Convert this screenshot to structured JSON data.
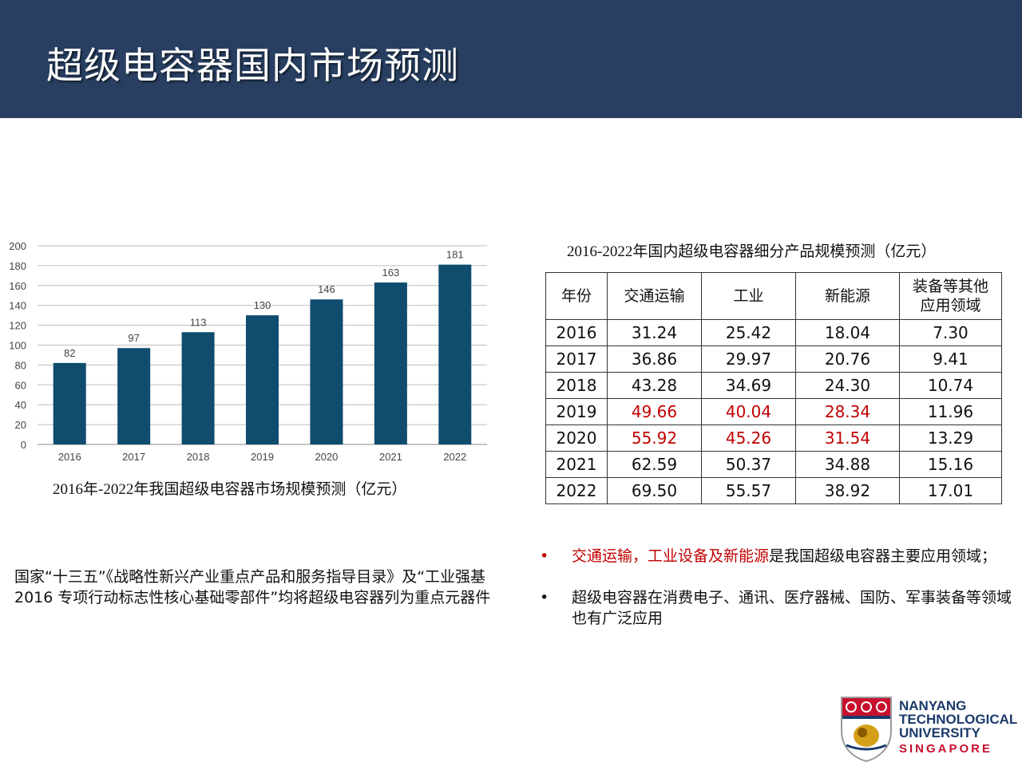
{
  "header": {
    "title": "超级电容器国内市场预测",
    "background": "#283f61"
  },
  "chart_data": {
    "type": "bar",
    "categories": [
      "2016",
      "2017",
      "2018",
      "2019",
      "2020",
      "2021",
      "2022"
    ],
    "values": [
      82,
      97,
      113,
      130,
      146,
      163,
      181
    ],
    "ylim": [
      0,
      200
    ],
    "yticks": [
      0,
      20,
      40,
      60,
      80,
      100,
      120,
      140,
      160,
      180,
      200
    ],
    "grid": true,
    "legend": "none",
    "bar_color": "#0f4c6e",
    "caption": "2016年-2022年我国超级电容器市场规模预测（亿元）"
  },
  "table": {
    "title": "2016-2022年国内超级电容器细分产品规模预测（亿元）",
    "headers": [
      "年份",
      "交通运输",
      "工业",
      "新能源",
      "装备等其他应用领域"
    ],
    "rows": [
      [
        "2016",
        "31.24",
        "25.42",
        "18.04",
        "7.30"
      ],
      [
        "2017",
        "36.86",
        "29.97",
        "20.76",
        "9.41"
      ],
      [
        "2018",
        "43.28",
        "34.69",
        "24.30",
        "10.74"
      ],
      [
        "2019",
        "49.66",
        "40.04",
        "28.34",
        "11.96"
      ],
      [
        "2020",
        "55.92",
        "45.26",
        "31.54",
        "13.29"
      ],
      [
        "2021",
        "62.59",
        "50.37",
        "34.88",
        "15.16"
      ],
      [
        "2022",
        "69.50",
        "55.57",
        "38.92",
        "17.01"
      ]
    ],
    "highlight_color": "#c00000"
  },
  "left_paragraph": "国家“十三五”《战略性新兴产业重点产品和服务指导目录》及“工业强基 2016 专项行动标志性核心基础零部件”均将超级电容器列为重点元器件",
  "bullets": [
    {
      "marker": "•",
      "highlight": "交通运输，工业设备及新能源",
      "text": "是我国超级电容器主要应用领域；"
    },
    {
      "marker": "•",
      "highlight": "",
      "text": "超级电容器在消费电子、通讯、医疗器械、国防、军事装备等领域也有广泛应用"
    }
  ],
  "logo": {
    "line1": "NANYANG",
    "line2": "TECHNOLOGICAL",
    "line3": "UNIVERSITY",
    "line4": "SINGAPORE"
  }
}
